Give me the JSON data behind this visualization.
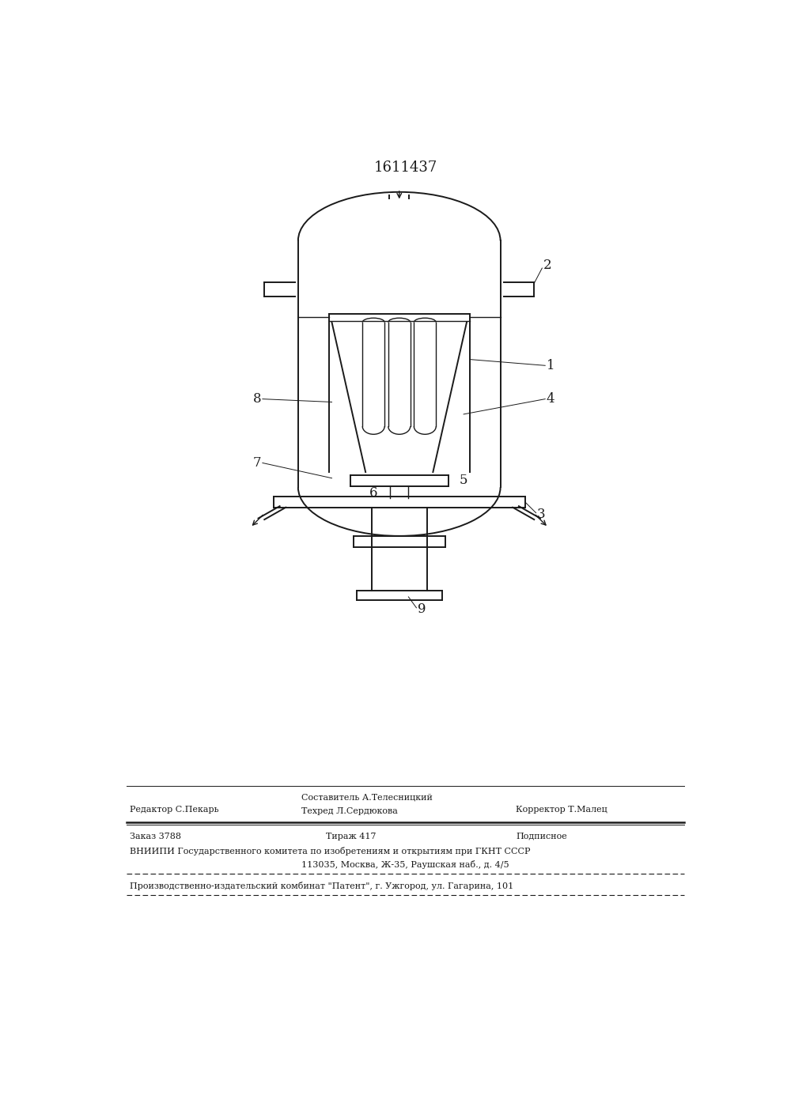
{
  "patent_number": "1611437",
  "background_color": "#ffffff",
  "line_color": "#1a1a1a",
  "footer_editor": "Редактор С.Пекарь",
  "footer_compiler": "Составитель А.Телесницкий",
  "footer_tehred": "Техред Л.Сердюкова",
  "footer_korrektor": "Корректор Т.Малец",
  "footer_zakaz": "Заказ 3788",
  "footer_tirazh": "Тираж 417",
  "footer_podpisnoe": "Подписное",
  "footer_vniiipi": "ВНИИПИ Государственного комитета по изобретениям и открытиям при ГКНТ СССР",
  "footer_address": "113035, Москва, Ж-35, Раушская наб., д. 4/5",
  "footer_patent": "Производственно-издательский комбинат \"Патент\", г. Ужгород, ул. Гагарина, 101"
}
